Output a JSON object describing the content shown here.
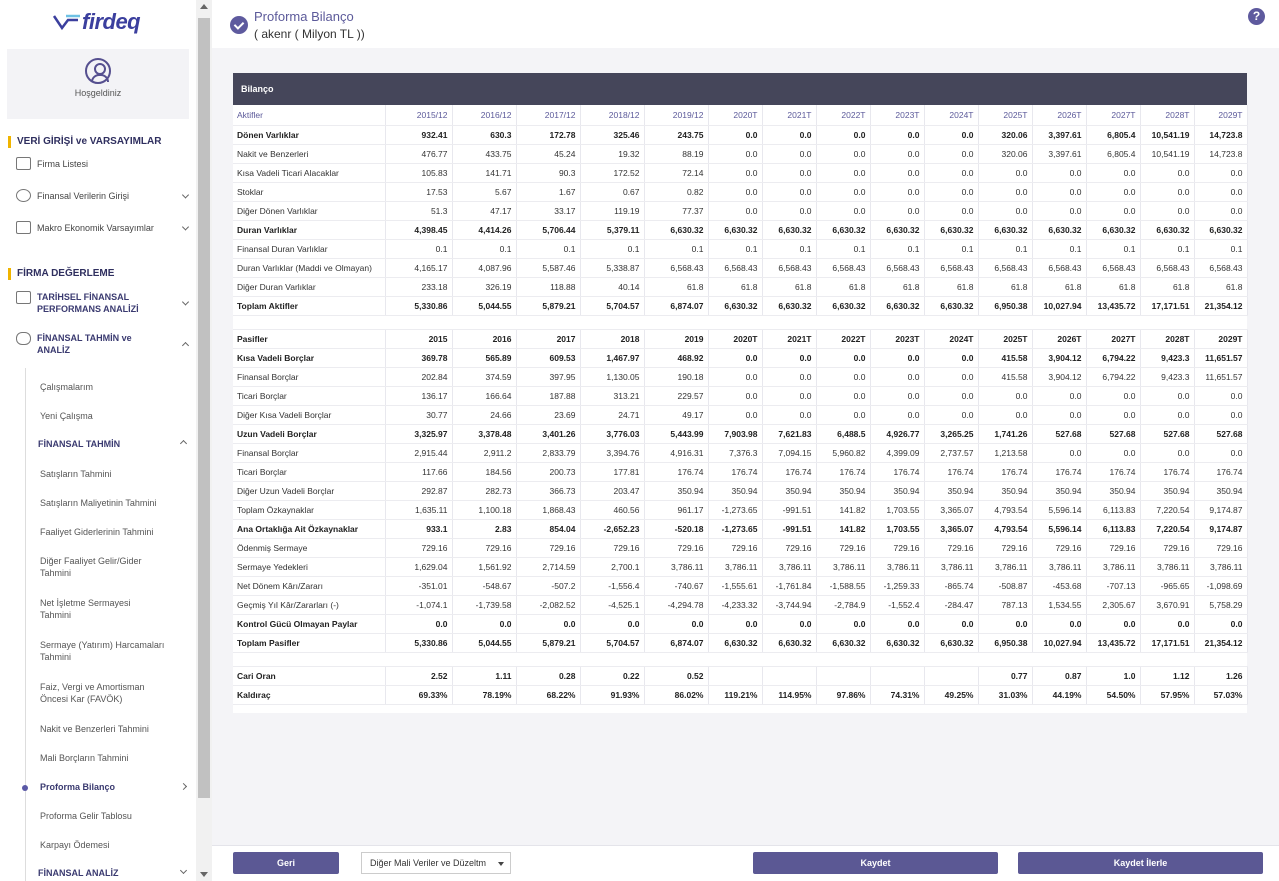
{
  "app": {
    "logo_text": "firdeq",
    "greeting": "Hoşgeldiniz"
  },
  "sidebar": {
    "sec1": "VERİ GİRİŞİ ve VARSAYIMLAR",
    "firma_listesi": "Firma Listesi",
    "finansal_veri": "Finansal Verilerin Girişi",
    "makro": "Makro Ekonomik Varsayımlar",
    "sec2": "FİRMA DEĞERLEME",
    "tarihsel_1": "TARİHSEL FİNANSAL",
    "tarihsel_2": "PERFORMANS ANALİZİ",
    "tahmin_1": "FİNANSAL TAHMİN ve",
    "tahmin_2": "ANALİZ",
    "calismalarim": "Çalışmalarım",
    "yeni_calisma": "Yeni Çalışma",
    "finansal_tahmin": "FİNANSAL TAHMİN",
    "satis_tahmini": "Satışların Tahmini",
    "maliyet_tahmini": "Satışların Maliyetinin Tahmini",
    "faaliyet_gider": "Faaliyet Giderlerinin Tahmini",
    "diger_faaliyet_1": "Diğer Faaliyet Gelir/Gider",
    "diger_faaliyet_2": "Tahmini",
    "net_isletme_1": "Net İşletme Sermayesi",
    "net_isletme_2": "Tahmini",
    "sermaye_harc_1": "Sermaye (Yatırım) Harcamaları",
    "sermaye_harc_2": "Tahmini",
    "favok_1": "Faiz, Vergi ve Amortisman",
    "favok_2": "Öncesi Kar (FAVÖK)",
    "nakit_tahmini": "Nakit ve Benzerleri Tahmini",
    "mali_borc": "Mali Borçların Tahmini",
    "proforma_bilanco": "Proforma Bilanço",
    "proforma_gelir": "Proforma Gelir Tablosu",
    "karpayi": "Karpayı Ödemesi",
    "finansal_analiz": "FİNANSAL ANALİZ"
  },
  "header": {
    "title": "Proforma Bilanço",
    "subtitle": "( akenr ( Milyon TL ))"
  },
  "table": {
    "title": "Bilanço",
    "rows": [
      {
        "type": "hdr",
        "cells": [
          "Aktifler",
          "2015/12",
          "2016/12",
          "2017/12",
          "2018/12",
          "2019/12",
          "2020T",
          "2021T",
          "2022T",
          "2023T",
          "2024T",
          "2025T",
          "2026T",
          "2027T",
          "2028T",
          "2029T"
        ]
      },
      {
        "type": "bold",
        "cells": [
          "Dönen Varlıklar",
          "932.41",
          "630.3",
          "172.78",
          "325.46",
          "243.75",
          "0.0",
          "0.0",
          "0.0",
          "0.0",
          "0.0",
          "320.06",
          "3,397.61",
          "6,805.4",
          "10,541.19",
          "14,723.8"
        ]
      },
      {
        "type": "",
        "cells": [
          "Nakit ve Benzerleri",
          "476.77",
          "433.75",
          "45.24",
          "19.32",
          "88.19",
          "0.0",
          "0.0",
          "0.0",
          "0.0",
          "0.0",
          "320.06",
          "3,397.61",
          "6,805.4",
          "10,541.19",
          "14,723.8"
        ]
      },
      {
        "type": "",
        "cells": [
          "Kısa Vadeli Ticari Alacaklar",
          "105.83",
          "141.71",
          "90.3",
          "172.52",
          "72.14",
          "0.0",
          "0.0",
          "0.0",
          "0.0",
          "0.0",
          "0.0",
          "0.0",
          "0.0",
          "0.0",
          "0.0"
        ]
      },
      {
        "type": "",
        "cells": [
          "Stoklar",
          "17.53",
          "5.67",
          "1.67",
          "0.67",
          "0.82",
          "0.0",
          "0.0",
          "0.0",
          "0.0",
          "0.0",
          "0.0",
          "0.0",
          "0.0",
          "0.0",
          "0.0"
        ]
      },
      {
        "type": "",
        "cells": [
          "Diğer Dönen Varlıklar",
          "51.3",
          "47.17",
          "33.17",
          "119.19",
          "77.37",
          "0.0",
          "0.0",
          "0.0",
          "0.0",
          "0.0",
          "0.0",
          "0.0",
          "0.0",
          "0.0",
          "0.0"
        ]
      },
      {
        "type": "bold",
        "cells": [
          "Duran Varlıklar",
          "4,398.45",
          "4,414.26",
          "5,706.44",
          "5,379.11",
          "6,630.32",
          "6,630.32",
          "6,630.32",
          "6,630.32",
          "6,630.32",
          "6,630.32",
          "6,630.32",
          "6,630.32",
          "6,630.32",
          "6,630.32",
          "6,630.32"
        ]
      },
      {
        "type": "",
        "cells": [
          "Finansal Duran Varlıklar",
          "0.1",
          "0.1",
          "0.1",
          "0.1",
          "0.1",
          "0.1",
          "0.1",
          "0.1",
          "0.1",
          "0.1",
          "0.1",
          "0.1",
          "0.1",
          "0.1",
          "0.1"
        ]
      },
      {
        "type": "",
        "cells": [
          "Duran Varlıklar (Maddi ve Olmayan)",
          "4,165.17",
          "4,087.96",
          "5,587.46",
          "5,338.87",
          "6,568.43",
          "6,568.43",
          "6,568.43",
          "6,568.43",
          "6,568.43",
          "6,568.43",
          "6,568.43",
          "6,568.43",
          "6,568.43",
          "6,568.43",
          "6,568.43"
        ]
      },
      {
        "type": "",
        "cells": [
          "Diğer Duran Varlıklar",
          "233.18",
          "326.19",
          "118.88",
          "40.14",
          "61.8",
          "61.8",
          "61.8",
          "61.8",
          "61.8",
          "61.8",
          "61.8",
          "61.8",
          "61.8",
          "61.8",
          "61.8"
        ]
      },
      {
        "type": "bold",
        "cells": [
          "Toplam Aktifler",
          "5,330.86",
          "5,044.55",
          "5,879.21",
          "5,704.57",
          "6,874.07",
          "6,630.32",
          "6,630.32",
          "6,630.32",
          "6,630.32",
          "6,630.32",
          "6,950.38",
          "10,027.94",
          "13,435.72",
          "17,171.51",
          "21,354.12"
        ]
      },
      {
        "type": "spacer",
        "cells": [
          "",
          "",
          "",
          "",
          "",
          "",
          "",
          "",
          "",
          "",
          "",
          "",
          "",
          "",
          "",
          ""
        ]
      },
      {
        "type": "hdr2",
        "cells": [
          "Pasifler",
          "2015",
          "2016",
          "2017",
          "2018",
          "2019",
          "2020T",
          "2021T",
          "2022T",
          "2023T",
          "2024T",
          "2025T",
          "2026T",
          "2027T",
          "2028T",
          "2029T"
        ]
      },
      {
        "type": "bold",
        "cells": [
          "Kısa Vadeli Borçlar",
          "369.78",
          "565.89",
          "609.53",
          "1,467.97",
          "468.92",
          "0.0",
          "0.0",
          "0.0",
          "0.0",
          "0.0",
          "415.58",
          "3,904.12",
          "6,794.22",
          "9,423.3",
          "11,651.57"
        ]
      },
      {
        "type": "",
        "cells": [
          "Finansal Borçlar",
          "202.84",
          "374.59",
          "397.95",
          "1,130.05",
          "190.18",
          "0.0",
          "0.0",
          "0.0",
          "0.0",
          "0.0",
          "415.58",
          "3,904.12",
          "6,794.22",
          "9,423.3",
          "11,651.57"
        ]
      },
      {
        "type": "",
        "cells": [
          "Ticari Borçlar",
          "136.17",
          "166.64",
          "187.88",
          "313.21",
          "229.57",
          "0.0",
          "0.0",
          "0.0",
          "0.0",
          "0.0",
          "0.0",
          "0.0",
          "0.0",
          "0.0",
          "0.0"
        ]
      },
      {
        "type": "",
        "cells": [
          "Diğer Kısa Vadeli Borçlar",
          "30.77",
          "24.66",
          "23.69",
          "24.71",
          "49.17",
          "0.0",
          "0.0",
          "0.0",
          "0.0",
          "0.0",
          "0.0",
          "0.0",
          "0.0",
          "0.0",
          "0.0"
        ]
      },
      {
        "type": "bold",
        "cells": [
          "Uzun Vadeli Borçlar",
          "3,325.97",
          "3,378.48",
          "3,401.26",
          "3,776.03",
          "5,443.99",
          "7,903.98",
          "7,621.83",
          "6,488.5",
          "4,926.77",
          "3,265.25",
          "1,741.26",
          "527.68",
          "527.68",
          "527.68",
          "527.68"
        ]
      },
      {
        "type": "",
        "cells": [
          "Finansal Borçlar",
          "2,915.44",
          "2,911.2",
          "2,833.79",
          "3,394.76",
          "4,916.31",
          "7,376.3",
          "7,094.15",
          "5,960.82",
          "4,399.09",
          "2,737.57",
          "1,213.58",
          "0.0",
          "0.0",
          "0.0",
          "0.0"
        ]
      },
      {
        "type": "",
        "cells": [
          "Ticari Borçlar",
          "117.66",
          "184.56",
          "200.73",
          "177.81",
          "176.74",
          "176.74",
          "176.74",
          "176.74",
          "176.74",
          "176.74",
          "176.74",
          "176.74",
          "176.74",
          "176.74",
          "176.74"
        ]
      },
      {
        "type": "",
        "cells": [
          "Diğer Uzun Vadeli Borçlar",
          "292.87",
          "282.73",
          "366.73",
          "203.47",
          "350.94",
          "350.94",
          "350.94",
          "350.94",
          "350.94",
          "350.94",
          "350.94",
          "350.94",
          "350.94",
          "350.94",
          "350.94"
        ]
      },
      {
        "type": "",
        "cells": [
          "Toplam Özkaynaklar",
          "1,635.11",
          "1,100.18",
          "1,868.43",
          "460.56",
          "961.17",
          "-1,273.65",
          "-991.51",
          "141.82",
          "1,703.55",
          "3,365.07",
          "4,793.54",
          "5,596.14",
          "6,113.83",
          "7,220.54",
          "9,174.87"
        ]
      },
      {
        "type": "bold",
        "cells": [
          "Ana Ortaklığa Ait Özkaynaklar",
          "933.1",
          "2.83",
          "854.04",
          "-2,652.23",
          "-520.18",
          "-1,273.65",
          "-991.51",
          "141.82",
          "1,703.55",
          "3,365.07",
          "4,793.54",
          "5,596.14",
          "6,113.83",
          "7,220.54",
          "9,174.87"
        ]
      },
      {
        "type": "",
        "cells": [
          "Ödenmiş Sermaye",
          "729.16",
          "729.16",
          "729.16",
          "729.16",
          "729.16",
          "729.16",
          "729.16",
          "729.16",
          "729.16",
          "729.16",
          "729.16",
          "729.16",
          "729.16",
          "729.16",
          "729.16"
        ]
      },
      {
        "type": "",
        "cells": [
          "Sermaye Yedekleri",
          "1,629.04",
          "1,561.92",
          "2,714.59",
          "2,700.1",
          "3,786.11",
          "3,786.11",
          "3,786.11",
          "3,786.11",
          "3,786.11",
          "3,786.11",
          "3,786.11",
          "3,786.11",
          "3,786.11",
          "3,786.11",
          "3,786.11"
        ]
      },
      {
        "type": "",
        "cells": [
          "Net Dönem Kârı/Zararı",
          "-351.01",
          "-548.67",
          "-507.2",
          "-1,556.4",
          "-740.67",
          "-1,555.61",
          "-1,761.84",
          "-1,588.55",
          "-1,259.33",
          "-865.74",
          "-508.87",
          "-453.68",
          "-707.13",
          "-965.65",
          "-1,098.69"
        ]
      },
      {
        "type": "",
        "cells": [
          "Geçmiş Yıl Kâr/Zararları (-)",
          "-1,074.1",
          "-1,739.58",
          "-2,082.52",
          "-4,525.1",
          "-4,294.78",
          "-4,233.32",
          "-3,744.94",
          "-2,784.9",
          "-1,552.4",
          "-284.47",
          "787.13",
          "1,534.55",
          "2,305.67",
          "3,670.91",
          "5,758.29"
        ]
      },
      {
        "type": "bold",
        "cells": [
          "Kontrol Gücü Olmayan Paylar",
          "0.0",
          "0.0",
          "0.0",
          "0.0",
          "0.0",
          "0.0",
          "0.0",
          "0.0",
          "0.0",
          "0.0",
          "0.0",
          "0.0",
          "0.0",
          "0.0",
          "0.0"
        ]
      },
      {
        "type": "bold",
        "cells": [
          "Toplam Pasifler",
          "5,330.86",
          "5,044.55",
          "5,879.21",
          "5,704.57",
          "6,874.07",
          "6,630.32",
          "6,630.32",
          "6,630.32",
          "6,630.32",
          "6,630.32",
          "6,950.38",
          "10,027.94",
          "13,435.72",
          "17,171.51",
          "21,354.12"
        ]
      },
      {
        "type": "spacer",
        "cells": [
          "",
          "",
          "",
          "",
          "",
          "",
          "",
          "",
          "",
          "",
          "",
          "",
          "",
          "",
          "",
          ""
        ]
      },
      {
        "type": "bold",
        "cells": [
          "Cari Oran",
          "2.52",
          "1.11",
          "0.28",
          "0.22",
          "0.52",
          "",
          "",
          "",
          "",
          "",
          "0.77",
          "0.87",
          "1.0",
          "1.12",
          "1.26"
        ]
      },
      {
        "type": "bold",
        "cells": [
          "Kaldıraç",
          "69.33%",
          "78.19%",
          "68.22%",
          "91.93%",
          "86.02%",
          "119.21%",
          "114.95%",
          "97.86%",
          "74.31%",
          "49.25%",
          "31.03%",
          "44.19%",
          "54.50%",
          "57.95%",
          "57.03%"
        ]
      }
    ]
  },
  "footer": {
    "back": "Geri",
    "select_value": "Diğer Mali Veriler ve Düzeltm",
    "save": "Kaydet",
    "save_next": "Kaydet İlerle"
  }
}
